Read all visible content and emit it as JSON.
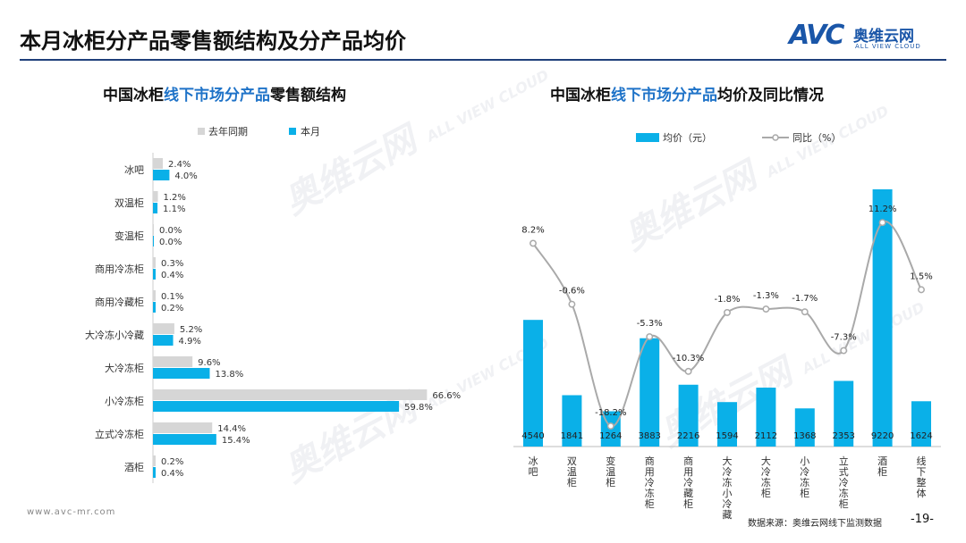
{
  "header": {
    "page_title": "本月冰柜分产品零售额结构及分产品均价",
    "brand_mark": "AVC",
    "brand_cn": "奥维云网",
    "brand_en": "ALL VIEW CLOUD"
  },
  "colors": {
    "current_bar": "#0ab0e8",
    "last_year_bar": "#d6d6d6",
    "yoy_line": "#a9a9a9",
    "header_rule": "#1f3f7a",
    "title_highlight": "#1f73c8"
  },
  "left_chart": {
    "title_parts": [
      "中国冰柜",
      "线下市场分产品",
      "零售额结构"
    ]
  },
  "right_chart": {
    "title_parts": [
      "中国冰柜",
      "线下市场分产品",
      "均价及同比情况"
    ]
  },
  "chart_data": [
    {
      "type": "bar",
      "orientation": "horizontal",
      "categories": [
        "冰吧",
        "双温柜",
        "变温柜",
        "商用冷冻柜",
        "商用冷藏柜",
        "大冷冻小冷藏",
        "大冷冻柜",
        "小冷冻柜",
        "立式冷冻柜",
        "酒柜"
      ],
      "series": [
        {
          "name": "去年同期",
          "values": [
            2.4,
            1.2,
            0.0,
            0.3,
            0.1,
            5.2,
            9.6,
            66.6,
            14.4,
            0.2
          ],
          "labels": [
            "2.4%",
            "1.2%",
            "0.0%",
            "0.3%",
            "0.1%",
            "5.2%",
            "9.6%",
            "66.6%",
            "14.4%",
            "0.2%"
          ]
        },
        {
          "name": "本月",
          "values": [
            4.0,
            1.1,
            0.0,
            0.4,
            0.2,
            4.9,
            13.8,
            59.8,
            15.4,
            0.4
          ],
          "labels": [
            "4.0%",
            "1.1%",
            "0.0%",
            "0.4%",
            "0.2%",
            "4.9%",
            "13.8%",
            "59.8%",
            "15.4%",
            "0.4%"
          ]
        }
      ],
      "legend_position": "top",
      "grid": false
    },
    {
      "type": "bar",
      "categories": [
        "冰吧",
        "双温柜",
        "变温柜",
        "商用冷冻柜",
        "商用冷藏柜",
        "大冷冻小冷藏",
        "大冷冻柜",
        "小冷冻柜",
        "立式冷冻柜",
        "酒柜",
        "线下整体"
      ],
      "series": [
        {
          "name": "均价（元）",
          "type": "bar",
          "axis": "left",
          "values": [
            4540,
            1841,
            1264,
            3883,
            2216,
            1594,
            2112,
            1368,
            2353,
            9220,
            1624
          ],
          "labels": [
            "4540",
            "1841",
            "1264",
            "3883",
            "2216",
            "1594",
            "2112",
            "1368",
            "2353",
            "9220",
            "1624"
          ]
        },
        {
          "name": "同比（%）",
          "type": "line",
          "axis": "right",
          "values": [
            8.2,
            -0.6,
            -18.2,
            -5.3,
            -10.3,
            -1.8,
            -1.3,
            -1.7,
            -7.3,
            11.2,
            1.5
          ],
          "labels": [
            "8.2%",
            "-0.6%",
            "-18.2%",
            "-5.3%",
            "-10.3%",
            "-1.8%",
            "-1.3%",
            "-1.7%",
            "-7.3%",
            "11.2%",
            "1.5%"
          ]
        }
      ],
      "legend_position": "top",
      "grid": false
    }
  ],
  "footer": {
    "url": "www.avc-mr.com",
    "source": "数据来源：奥维云网线下监测数据",
    "page_number": "-19-"
  },
  "watermark": {
    "cn": "奥维云网",
    "en": "ALL VIEW CLOUD"
  }
}
